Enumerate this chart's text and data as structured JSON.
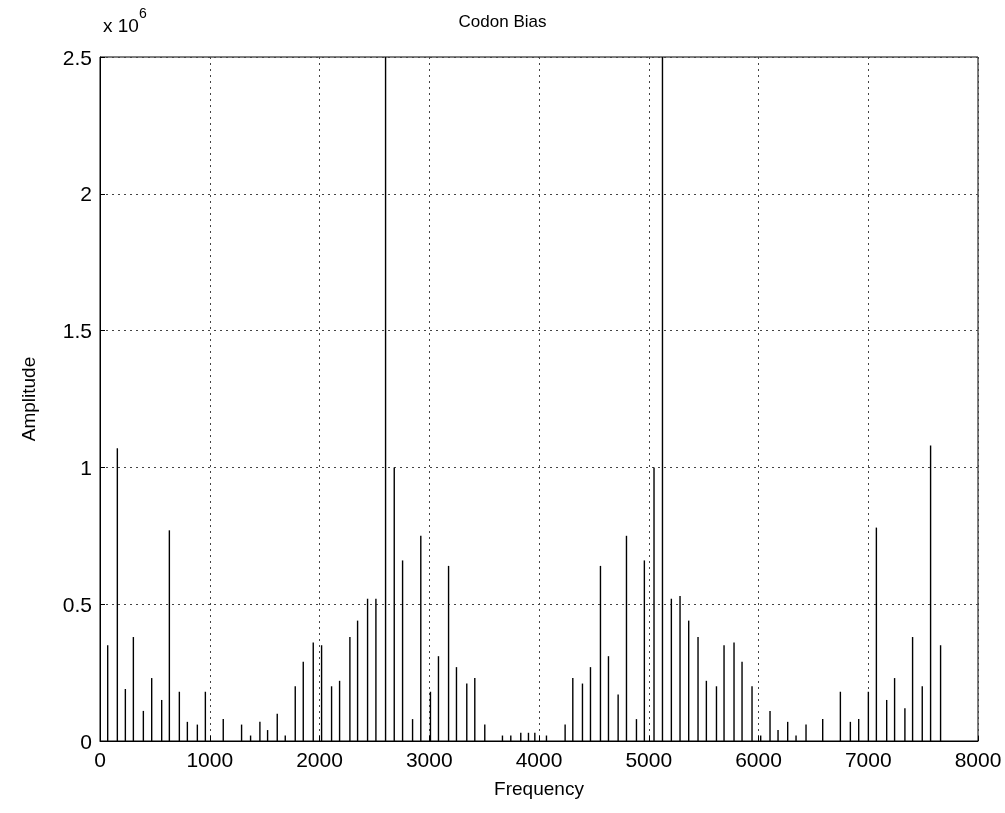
{
  "chart_data": {
    "type": "bar",
    "title": "Codon Bias",
    "xlabel": "Frequency",
    "ylabel": "Amplitude",
    "annotations": [
      "x 10$^{6}$"
    ],
    "x": [
      70,
      158,
      231,
      304,
      395,
      471,
      562,
      632,
      723,
      796,
      887,
      960,
      1123,
      1290,
      1372,
      1457,
      1527,
      1615,
      1688,
      1779,
      1852,
      1943,
      2019,
      2110,
      2183,
      2277,
      2347,
      2438,
      2514,
      2602,
      2681,
      2757,
      2848,
      2923,
      3011,
      3084,
      3176,
      3248,
      3342,
      3415,
      3506,
      3667,
      3743,
      3834,
      3904,
      3962,
      4068,
      4238,
      4308,
      4396,
      4469,
      4560,
      4633,
      4721,
      4797,
      4888,
      4960,
      5048,
      5125,
      5206,
      5285,
      5364,
      5449,
      5525,
      5617,
      5686,
      5777,
      5850,
      5941,
      6020,
      6105,
      6178,
      6266,
      6342,
      6433,
      6585,
      6746,
      6837,
      6913,
      7001,
      7074,
      7168,
      7240,
      7334,
      7404,
      7492,
      7568,
      7659
    ],
    "series": [
      {
        "color": "#000000",
        "values": [
          0.35,
          1.07,
          0.19,
          0.38,
          0.11,
          0.23,
          0.15,
          0.77,
          0.18,
          0.07,
          0.06,
          0.18,
          0.08,
          0.06,
          0.02,
          0.07,
          0.04,
          0.1,
          0.02,
          0.2,
          0.29,
          0.36,
          0.35,
          0.2,
          0.22,
          0.38,
          0.44,
          0.52,
          0.52,
          2.5,
          1.0,
          0.66,
          0.08,
          0.75,
          0.18,
          0.31,
          0.64,
          0.27,
          0.21,
          0.23,
          0.06,
          0.02,
          0.02,
          0.03,
          0.03,
          0.03,
          0.02,
          0.06,
          0.23,
          0.21,
          0.27,
          0.64,
          0.31,
          0.17,
          0.75,
          0.08,
          0.66,
          1.0,
          2.5,
          0.52,
          0.53,
          0.44,
          0.38,
          0.22,
          0.2,
          0.35,
          0.36,
          0.29,
          0.2,
          0.02,
          0.11,
          0.04,
          0.07,
          0.02,
          0.06,
          0.08,
          0.18,
          0.07,
          0.08,
          0.18,
          0.78,
          0.15,
          0.23,
          0.12,
          0.38,
          0.2,
          1.08,
          0.35
        ]
      }
    ],
    "xlim": [
      0,
      8000
    ],
    "xticks": [
      0,
      1000,
      2000,
      3000,
      4000,
      5000,
      6000,
      7000,
      8000
    ],
    "ylim": [
      0,
      2.5
    ],
    "yticks": [
      0,
      0.5,
      1,
      1.5,
      2,
      2.5
    ],
    "grid": true
  }
}
